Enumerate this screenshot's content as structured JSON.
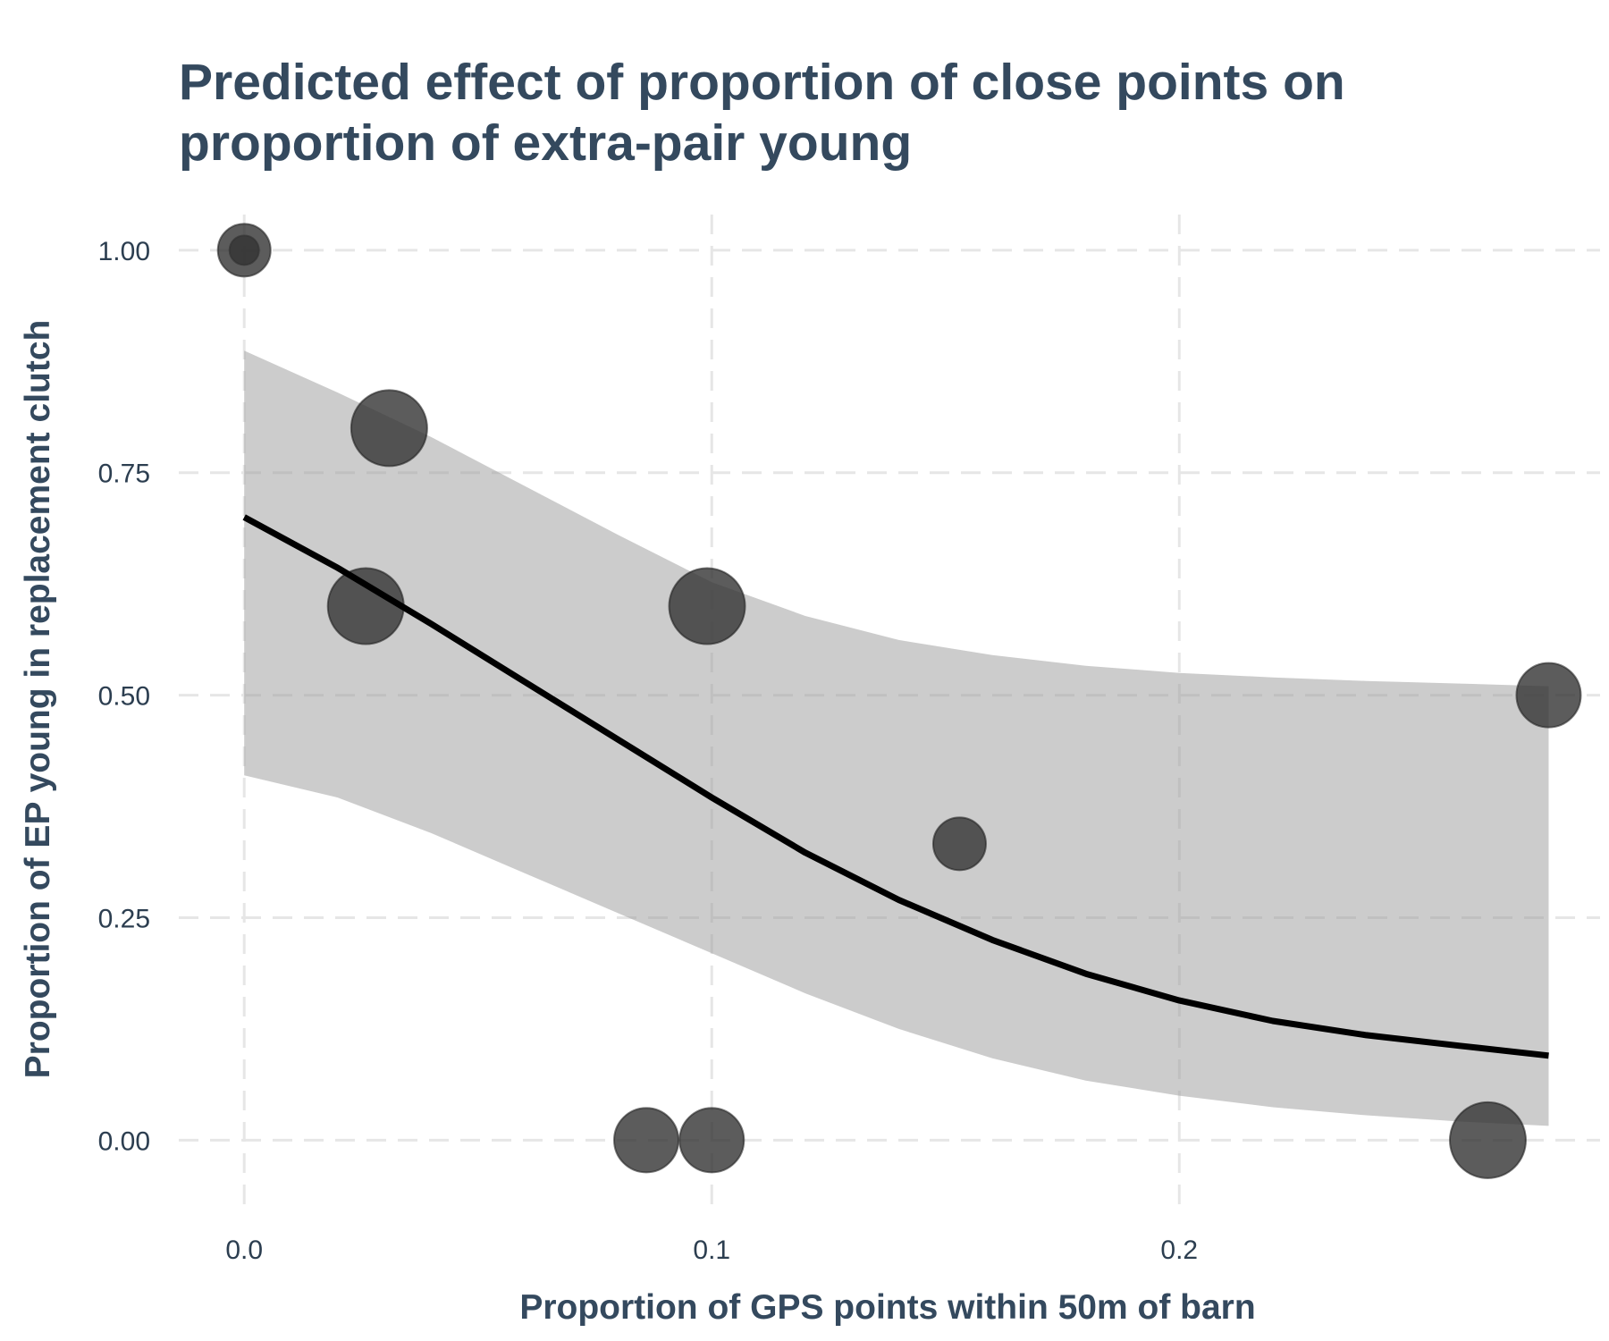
{
  "chart_data": {
    "type": "scatter",
    "title_lines": [
      "Predicted effect of proportion of close points on",
      "proportion of extra-pair young"
    ],
    "xlabel": "Proportion of GPS points within 50m of barn",
    "ylabel": "Proportion of EP young in replacement clutch",
    "xlim": [
      -0.014,
      0.29
    ],
    "ylim": [
      -0.08,
      1.04
    ],
    "x_ticks": [
      {
        "value": 0.0,
        "label": "0.0"
      },
      {
        "value": 0.1,
        "label": "0.1"
      },
      {
        "value": 0.2,
        "label": "0.2"
      }
    ],
    "y_ticks": [
      {
        "value": 0.0,
        "label": "0.00"
      },
      {
        "value": 0.25,
        "label": "0.25"
      },
      {
        "value": 0.5,
        "label": "0.50"
      },
      {
        "value": 0.75,
        "label": "0.75"
      },
      {
        "value": 1.0,
        "label": "1.00"
      }
    ],
    "grid": true,
    "points": [
      {
        "x": 0.0,
        "y": 1.0,
        "size": 1
      },
      {
        "x": 0.0,
        "y": 1.0,
        "size": 3
      },
      {
        "x": 0.031,
        "y": 0.8,
        "size": 5
      },
      {
        "x": 0.026,
        "y": 0.6,
        "size": 5
      },
      {
        "x": 0.099,
        "y": 0.6,
        "size": 5
      },
      {
        "x": 0.153,
        "y": 0.333,
        "size": 3
      },
      {
        "x": 0.279,
        "y": 0.5,
        "size": 4
      },
      {
        "x": 0.086,
        "y": 0.0,
        "size": 4
      },
      {
        "x": 0.1,
        "y": 0.0,
        "size": 4
      },
      {
        "x": 0.266,
        "y": 0.0,
        "size": 5
      }
    ],
    "fit_line": {
      "x": [
        0.0,
        0.02,
        0.04,
        0.06,
        0.08,
        0.1,
        0.12,
        0.14,
        0.16,
        0.18,
        0.2,
        0.22,
        0.24,
        0.26,
        0.279
      ],
      "y": [
        0.7,
        0.643,
        0.58,
        0.515,
        0.45,
        0.385,
        0.323,
        0.27,
        0.225,
        0.187,
        0.157,
        0.134,
        0.118,
        0.106,
        0.095
      ],
      "lower": [
        0.41,
        0.385,
        0.345,
        0.3,
        0.255,
        0.21,
        0.165,
        0.125,
        0.092,
        0.067,
        0.05,
        0.037,
        0.028,
        0.021,
        0.016
      ],
      "upper": [
        0.887,
        0.84,
        0.79,
        0.735,
        0.68,
        0.627,
        0.589,
        0.562,
        0.545,
        0.533,
        0.525,
        0.52,
        0.516,
        0.513,
        0.51
      ]
    },
    "colors": {
      "point_fill": "#333333",
      "point_opacity": 0.8,
      "band": "#999999",
      "band_opacity": 0.5,
      "line": "#000000",
      "grid": "#e6e6e6",
      "text": "#34495e"
    }
  }
}
